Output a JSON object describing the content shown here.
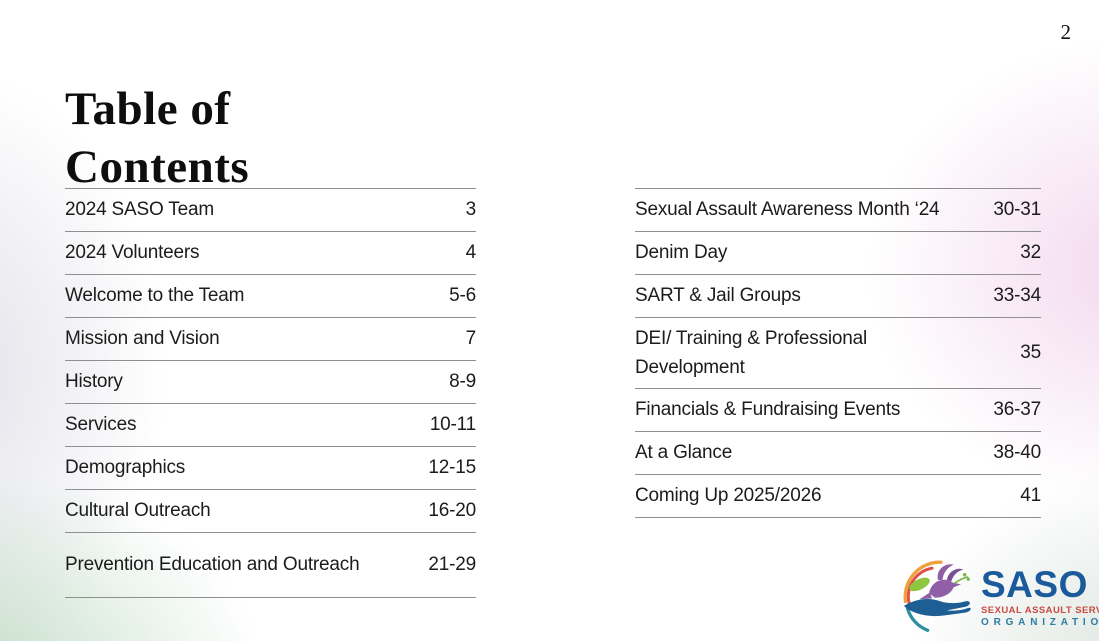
{
  "page": {
    "number": "2",
    "title": "Table of Contents"
  },
  "toc": {
    "left": {
      "rows": [
        {
          "label": "2024 SASO Team",
          "pages": "3"
        },
        {
          "label": "2024 Volunteers",
          "pages": "4"
        },
        {
          "label": "Welcome to the Team",
          "pages": "5-6"
        },
        {
          "label": "Mission and Vision",
          "pages": "7"
        },
        {
          "label": "History",
          "pages": "8-9"
        },
        {
          "label": "Services",
          "pages": "10-11"
        },
        {
          "label": "Demographics",
          "pages": "12-15"
        },
        {
          "label": "Cultural Outreach",
          "pages": "16-20"
        },
        {
          "label": "Prevention Education and Outreach",
          "pages": "21-29",
          "tall": true
        }
      ]
    },
    "right": {
      "rows": [
        {
          "label": "Sexual Assault Awareness Month ‘24",
          "pages": "30-31"
        },
        {
          "label": "Denim Day",
          "pages": "32"
        },
        {
          "label": "SART & Jail Groups",
          "pages": "33-34"
        },
        {
          "label": "DEI/ Training & Professional Development",
          "pages": "35",
          "tall": true
        },
        {
          "label": "Financials & Fundraising Events",
          "pages": "36-37"
        },
        {
          "label": "At a Glance",
          "pages": "38-40"
        },
        {
          "label": "Coming Up 2025/2026",
          "pages": "41"
        }
      ]
    }
  },
  "logo": {
    "acronym": "SASO",
    "line1": "SEXUAL ASSAULT SERVICES",
    "line2": "ORGANIZATION",
    "emblem_icons": [
      "dove-icon",
      "leaf-icon",
      "hand-icon",
      "arc-swirl-icon"
    ],
    "colors": {
      "acronym": "#1b5a9b",
      "line1": "#c94b43",
      "line2": "#2f7ba1",
      "arc_orange": "#f0a03c",
      "arc_red": "#dd5146",
      "arc_teal": "#2e8fa3",
      "leaf_green": "#8dc63f",
      "dove_purple": "#8f5fa8",
      "hand_blue": "#1d5e94"
    }
  }
}
